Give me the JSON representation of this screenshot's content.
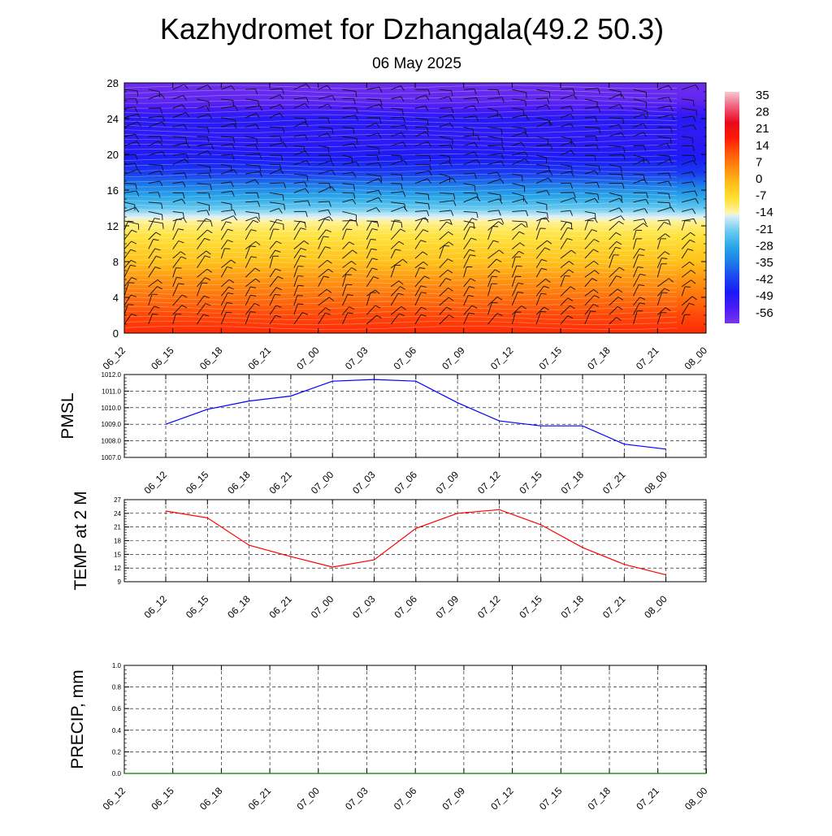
{
  "header": {
    "title": "Kazhydromet for Dzhangala(49.2 50.3)",
    "subtitle": "06 May 2025"
  },
  "time_labels": [
    "06_12",
    "06_15",
    "06_18",
    "06_21",
    "07_00",
    "07_03",
    "07_06",
    "07_09",
    "07_12",
    "07_15",
    "07_18",
    "07_21",
    "08_00"
  ],
  "chart_data": [
    {
      "id": "cross-section",
      "type": "heatmap",
      "title": "",
      "xlabel": "",
      "ylabel": "",
      "x": [
        "06_12",
        "06_15",
        "06_18",
        "06_21",
        "07_00",
        "07_03",
        "07_06",
        "07_09",
        "07_12",
        "07_15",
        "07_18",
        "07_21",
        "08_00"
      ],
      "ylim": [
        0,
        28
      ],
      "yticks": [
        0,
        4,
        8,
        12,
        16,
        20,
        24,
        28
      ],
      "colorbar": {
        "labels": [
          "35",
          "28",
          "21",
          "14",
          "7",
          "0",
          "-7",
          "-14",
          "-21",
          "-28",
          "-35",
          "-42",
          "-49",
          "-56"
        ],
        "range": [
          -63,
          42
        ],
        "stops": [
          {
            "value": -63,
            "color": "#7b35e8"
          },
          {
            "value": -56,
            "color": "#4a1af5"
          },
          {
            "value": -49,
            "color": "#1a1af5"
          },
          {
            "value": -42,
            "color": "#1a45f0"
          },
          {
            "value": -35,
            "color": "#1e7de8"
          },
          {
            "value": -28,
            "color": "#2aa8e8"
          },
          {
            "value": -21,
            "color": "#6cccf0"
          },
          {
            "value": -14,
            "color": "#dff1f8"
          },
          {
            "value": -13,
            "color": "#fff6b0"
          },
          {
            "value": -7,
            "color": "#ffe23a"
          },
          {
            "value": 0,
            "color": "#ffc21a"
          },
          {
            "value": 7,
            "color": "#ff8f10"
          },
          {
            "value": 14,
            "color": "#ff5a0a"
          },
          {
            "value": 21,
            "color": "#ff1a05"
          },
          {
            "value": 28,
            "color": "#e80a1a"
          },
          {
            "value": 35,
            "color": "#f05a7a"
          },
          {
            "value": 42,
            "color": "#f6c8d2"
          }
        ]
      },
      "temperature_profile": [
        {
          "level": 0,
          "value": 19
        },
        {
          "level": 2,
          "value": 16
        },
        {
          "level": 4,
          "value": 11
        },
        {
          "level": 6,
          "value": 6
        },
        {
          "level": 8,
          "value": 0
        },
        {
          "level": 10,
          "value": -5
        },
        {
          "level": 12,
          "value": -10
        },
        {
          "level": 13,
          "value": -14
        },
        {
          "level": 14,
          "value": -22
        },
        {
          "level": 16,
          "value": -32
        },
        {
          "level": 18,
          "value": -44
        },
        {
          "level": 20,
          "value": -50
        },
        {
          "level": 22,
          "value": -52
        },
        {
          "level": 24,
          "value": -51
        },
        {
          "level": 26,
          "value": -59
        },
        {
          "level": 28,
          "value": -61
        }
      ],
      "wind_barbs": "black barbs at each time step and level"
    },
    {
      "id": "pmsl",
      "type": "line",
      "title": "",
      "xlabel": "",
      "ylabel": "PMSL",
      "x": [
        "06_12",
        "06_15",
        "06_18",
        "06_21",
        "07_00",
        "07_03",
        "07_06",
        "07_09",
        "07_12",
        "07_15",
        "07_18",
        "07_21",
        "08_00"
      ],
      "series": [
        {
          "color": "#0000ff",
          "values": [
            1009.0,
            1009.9,
            1010.4,
            1010.7,
            1011.6,
            1011.7,
            1011.6,
            1010.3,
            1009.2,
            1008.9,
            1008.9,
            1007.8,
            1007.5
          ]
        }
      ],
      "ylim": [
        1007.0,
        1012.0
      ],
      "yticks": [
        "1007.0",
        "1008.0",
        "1009.0",
        "1010.0",
        "1011.0",
        "1012.0"
      ],
      "grid": true
    },
    {
      "id": "temp2m",
      "type": "line",
      "title": "",
      "xlabel": "",
      "ylabel": "TEMP at 2 M",
      "x": [
        "06_12",
        "06_15",
        "06_18",
        "06_21",
        "07_00",
        "07_03",
        "07_06",
        "07_09",
        "07_12",
        "07_15",
        "07_18",
        "07_21",
        "08_00"
      ],
      "series": [
        {
          "color": "#ff0000",
          "values": [
            24.5,
            23.0,
            17.0,
            14.5,
            12.2,
            13.8,
            20.7,
            24.0,
            24.8,
            21.5,
            16.5,
            12.8,
            10.5
          ]
        }
      ],
      "ylim": [
        9,
        27
      ],
      "yticks": [
        "9",
        "12",
        "15",
        "18",
        "21",
        "24",
        "27"
      ],
      "grid": true
    },
    {
      "id": "precip",
      "type": "line",
      "title": "",
      "xlabel": "",
      "ylabel": "PRECIP, mm",
      "x": [
        "06_12",
        "06_15",
        "06_18",
        "06_21",
        "07_00",
        "07_03",
        "07_06",
        "07_09",
        "07_12",
        "07_15",
        "07_18",
        "07_21",
        "08_00"
      ],
      "series": [
        {
          "color": "#008000",
          "values": [
            0,
            0,
            0,
            0,
            0,
            0,
            0,
            0,
            0,
            0,
            0,
            0,
            0
          ]
        }
      ],
      "ylim": [
        0.0,
        1.0
      ],
      "yticks": [
        "0.0",
        "0.2",
        "0.4",
        "0.6",
        "0.8",
        "1.0"
      ],
      "grid": true
    }
  ]
}
